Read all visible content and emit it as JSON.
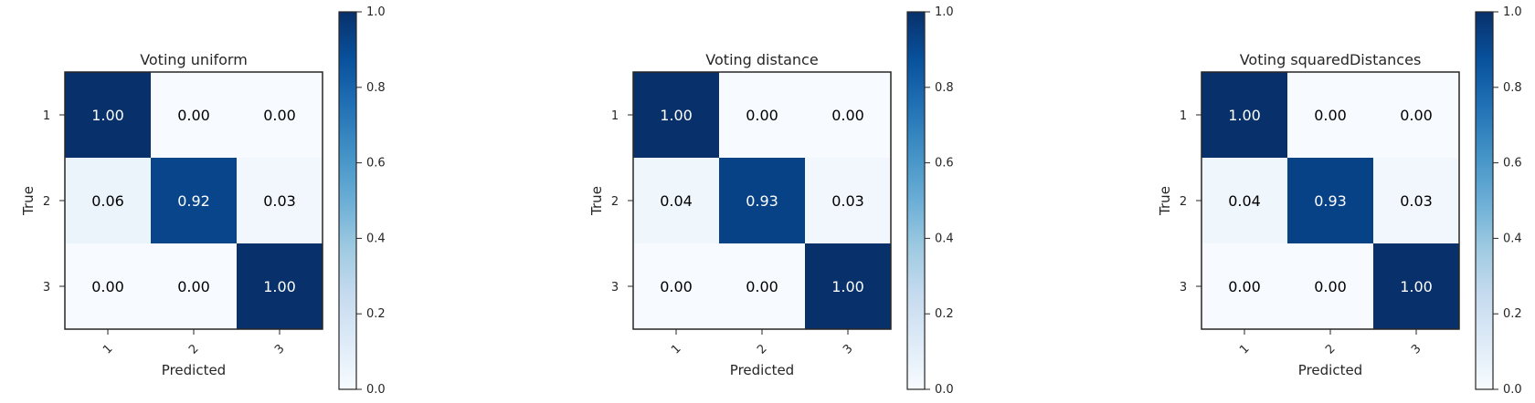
{
  "colors": {
    "cmap_low": "#f7fbff",
    "cmap_mid": "#6aaed6",
    "cmap_high": "#08306b",
    "frame": "#262626",
    "text_dark": "#000000",
    "text_light": "#ffffff"
  },
  "chart_data": [
    {
      "type": "heatmap",
      "title": "Voting uniform",
      "xlabel": "Predicted",
      "ylabel": "True",
      "x_categories": [
        "1",
        "2",
        "3"
      ],
      "y_categories": [
        "1",
        "2",
        "3"
      ],
      "values": [
        [
          1.0,
          0.0,
          0.0
        ],
        [
          0.06,
          0.92,
          0.03
        ],
        [
          0.0,
          0.0,
          1.0
        ]
      ],
      "cell_labels": [
        [
          "1.00",
          "0.00",
          "0.00"
        ],
        [
          "0.06",
          "0.92",
          "0.03"
        ],
        [
          "0.00",
          "0.00",
          "1.00"
        ]
      ],
      "colorbar": {
        "range": [
          0.0,
          1.0
        ],
        "ticks": [
          "0.0",
          "0.2",
          "0.4",
          "0.6",
          "0.8",
          "1.0"
        ],
        "colormap": "Blues"
      }
    },
    {
      "type": "heatmap",
      "title": "Voting distance",
      "xlabel": "Predicted",
      "ylabel": "True",
      "x_categories": [
        "1",
        "2",
        "3"
      ],
      "y_categories": [
        "1",
        "2",
        "3"
      ],
      "values": [
        [
          1.0,
          0.0,
          0.0
        ],
        [
          0.04,
          0.93,
          0.03
        ],
        [
          0.0,
          0.0,
          1.0
        ]
      ],
      "cell_labels": [
        [
          "1.00",
          "0.00",
          "0.00"
        ],
        [
          "0.04",
          "0.93",
          "0.03"
        ],
        [
          "0.00",
          "0.00",
          "1.00"
        ]
      ],
      "colorbar": {
        "range": [
          0.0,
          1.0
        ],
        "ticks": [
          "0.0",
          "0.2",
          "0.4",
          "0.6",
          "0.8",
          "1.0"
        ],
        "colormap": "Blues"
      }
    },
    {
      "type": "heatmap",
      "title": "Voting squaredDistances",
      "xlabel": "Predicted",
      "ylabel": "True",
      "x_categories": [
        "1",
        "2",
        "3"
      ],
      "y_categories": [
        "1",
        "2",
        "3"
      ],
      "values": [
        [
          1.0,
          0.0,
          0.0
        ],
        [
          0.04,
          0.93,
          0.03
        ],
        [
          0.0,
          0.0,
          1.0
        ]
      ],
      "cell_labels": [
        [
          "1.00",
          "0.00",
          "0.00"
        ],
        [
          "0.04",
          "0.93",
          "0.03"
        ],
        [
          "0.00",
          "0.00",
          "1.00"
        ]
      ],
      "colorbar": {
        "range": [
          0.0,
          1.0
        ],
        "ticks": [
          "0.0",
          "0.2",
          "0.4",
          "0.6",
          "0.8",
          "1.0"
        ],
        "colormap": "Blues"
      }
    }
  ]
}
